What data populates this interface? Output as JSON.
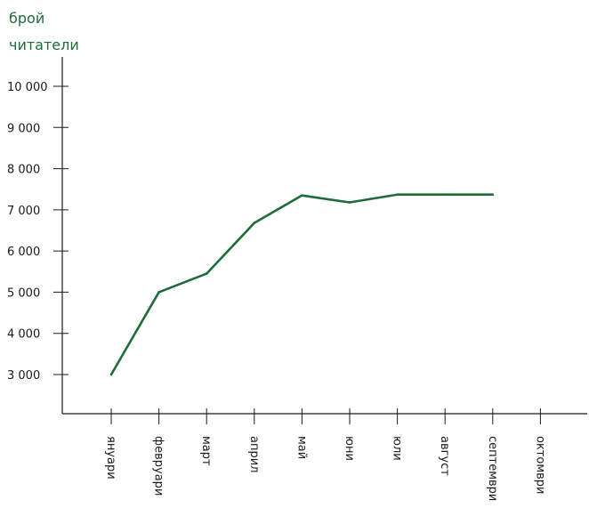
{
  "chart_data": {
    "type": "line",
    "ylabel_lines": [
      "брой",
      "читатели"
    ],
    "xlabel": "",
    "categories": [
      "януари",
      "февруари",
      "март",
      "април",
      "май",
      "юни",
      "юли",
      "август",
      "септември",
      "октомври"
    ],
    "series": [
      {
        "values": [
          3000,
          5000,
          5450,
          6680,
          7350,
          7180,
          7370,
          7370,
          7370,
          null
        ]
      }
    ],
    "yticks": [
      3000,
      4000,
      5000,
      6000,
      7000,
      8000,
      9000,
      10000
    ],
    "ytick_labels": [
      "3 000",
      "4 000",
      "5 000",
      "6 000",
      "7 000",
      "8 000",
      "9 000",
      "10 000"
    ],
    "ylim": [
      2000,
      10500
    ],
    "grid": false,
    "legend": "none",
    "colors": {
      "line": "#1f6b3a",
      "ylabel": "#1f6b3a",
      "axis": "#1a1a1a"
    }
  }
}
